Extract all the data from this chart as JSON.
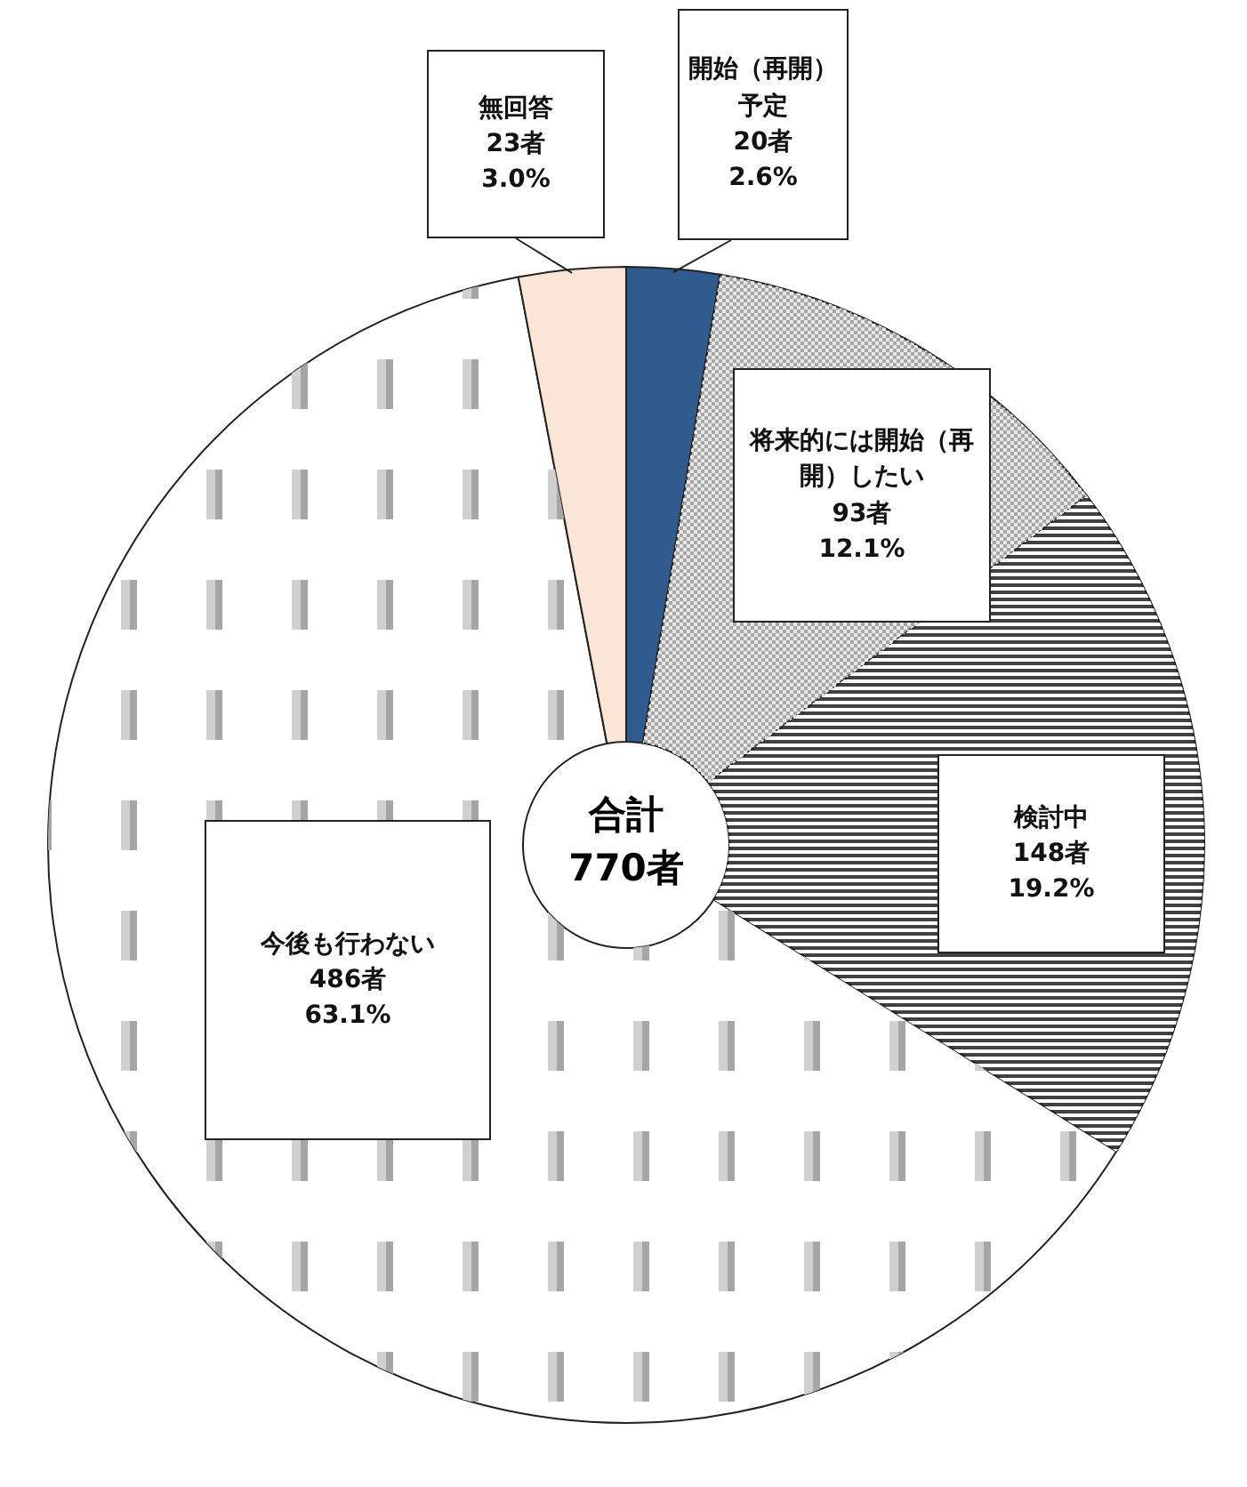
{
  "chart_data": {
    "type": "donut",
    "categories": [
      "開始（再開）予定",
      "将来的には開始（再開）したい",
      "検討中",
      "今後も行わない",
      "無回答"
    ],
    "values": [
      20,
      93,
      148,
      486,
      23
    ],
    "value_labels": [
      "20者\n2.6%",
      "93者\n12.1%",
      "148者\n19.2%",
      "486者\n63.1%",
      "23者\n3.0%"
    ],
    "colors": [
      "#2f5b8e",
      "#a6a6a6",
      "#404040",
      "#ffffff",
      "#fbe5d6"
    ],
    "annotations": [
      "合計\n770者"
    ]
  }
}
